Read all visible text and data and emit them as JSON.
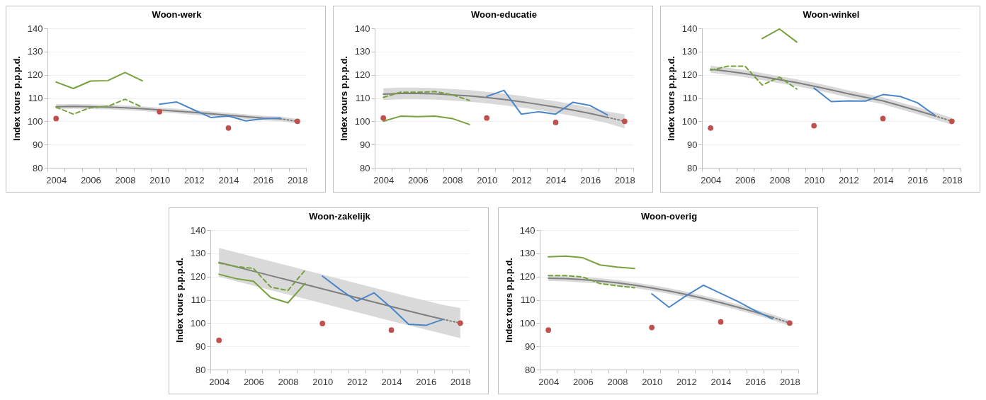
{
  "chart_data": [
    {
      "type": "line",
      "title": "Woon-werk",
      "ylabel": "Index tours p.p.p.d.",
      "categories": [
        "2004",
        null,
        "2006",
        null,
        "2008",
        null,
        "2010",
        null,
        "2012",
        null,
        "2014",
        null,
        "2016",
        null,
        "2018"
      ],
      "ylim": [
        80,
        140
      ],
      "yticks": [
        80,
        90,
        100,
        110,
        120,
        130,
        140
      ],
      "grid": "y",
      "series": [
        {
          "color": "#7f7f7f",
          "values": [
            106.3,
            106.4,
            106.3,
            106.1,
            105.8,
            105.4,
            104.9,
            104.4,
            103.8,
            103.2,
            102.6,
            102.0,
            101.4,
            101.1,
            null
          ],
          "lower": [
            105.3,
            105.4,
            105.3,
            105.1,
            104.8,
            104.4,
            103.9,
            103.4,
            102.8,
            102.2,
            101.6,
            101.0,
            100.4,
            100.1,
            99.0
          ],
          "upper": [
            107.3,
            107.4,
            107.3,
            107.1,
            106.8,
            106.4,
            105.9,
            105.4,
            104.8,
            104.2,
            103.6,
            103.0,
            102.4,
            102.1,
            101.0
          ]
        },
        {
          "type": "line",
          "color": "#7f7f7f",
          "line_style": "dotted",
          "values": [
            null,
            null,
            null,
            null,
            null,
            null,
            null,
            null,
            null,
            null,
            null,
            null,
            null,
            101.1,
            100
          ]
        },
        {
          "type": "line",
          "color": "#77a13c",
          "line_style": "solid",
          "values": [
            116.9,
            114.1,
            117.3,
            117.5,
            121.0,
            117.4,
            null,
            null,
            null,
            null,
            null,
            null,
            null,
            null,
            null
          ]
        },
        {
          "type": "line",
          "color": "#77a13c",
          "line_style": "dashed",
          "values": [
            106.1,
            103.1,
            105.9,
            106.4,
            109.5,
            106.1,
            null,
            null,
            null,
            null,
            null,
            null,
            null,
            null,
            null
          ]
        },
        {
          "type": "line",
          "color": "#4a86c8",
          "line_style": "solid",
          "values": [
            null,
            null,
            null,
            null,
            null,
            null,
            107.3,
            108.3,
            104.9,
            101.6,
            102.3,
            100.2,
            101.1,
            101.4,
            null
          ]
        },
        {
          "type": "scatter",
          "color": "#c0504d",
          "marker": "circle",
          "values": [
            101.2,
            null,
            null,
            null,
            null,
            null,
            104.1,
            null,
            null,
            null,
            97.1,
            null,
            null,
            null,
            100
          ]
        }
      ]
    },
    {
      "type": "line",
      "title": "Woon-educatie",
      "ylabel": "Index tours p.p.p.d.",
      "categories": [
        "2004",
        null,
        "2006",
        null,
        "2008",
        null,
        "2010",
        null,
        "2012",
        null,
        "2014",
        null,
        "2016",
        null,
        "2018"
      ],
      "ylim": [
        80,
        140
      ],
      "yticks": [
        80,
        90,
        100,
        110,
        120,
        130,
        140
      ],
      "grid": "y",
      "series": [
        {
          "color": "#7f7f7f",
          "values": [
            111.7,
            112.0,
            112.0,
            111.8,
            111.4,
            110.9,
            110.2,
            109.4,
            108.4,
            107.3,
            106.1,
            104.8,
            103.4,
            101.7,
            null
          ],
          "lower": [
            109.2,
            109.5,
            109.5,
            109.3,
            108.9,
            108.4,
            107.7,
            106.9,
            105.9,
            104.8,
            103.6,
            102.3,
            100.9,
            99.2,
            97.0
          ],
          "upper": [
            114.2,
            114.5,
            114.5,
            114.3,
            113.9,
            113.4,
            112.7,
            111.9,
            110.9,
            109.8,
            108.6,
            107.3,
            105.9,
            104.2,
            103.0
          ]
        },
        {
          "type": "line",
          "color": "#7f7f7f",
          "line_style": "dotted",
          "values": [
            null,
            null,
            null,
            null,
            null,
            null,
            null,
            null,
            null,
            null,
            null,
            null,
            null,
            101.7,
            100
          ]
        },
        {
          "type": "line",
          "color": "#77a13c",
          "line_style": "solid",
          "values": [
            100.0,
            102.2,
            102.0,
            102.2,
            101.2,
            98.6,
            null,
            null,
            null,
            null,
            null,
            null,
            null,
            null,
            null
          ]
        },
        {
          "type": "line",
          "color": "#77a13c",
          "line_style": "dashed",
          "values": [
            110.3,
            112.5,
            112.5,
            112.8,
            111.4,
            109.0,
            null,
            null,
            null,
            null,
            null,
            null,
            null,
            null,
            null
          ]
        },
        {
          "type": "line",
          "color": "#4a86c8",
          "line_style": "solid",
          "values": [
            null,
            null,
            null,
            null,
            null,
            null,
            110.7,
            113.3,
            103.1,
            104.1,
            103.1,
            108.2,
            106.8,
            102.7,
            null
          ]
        },
        {
          "type": "scatter",
          "color": "#c0504d",
          "marker": "circle",
          "values": [
            101.4,
            null,
            null,
            null,
            null,
            null,
            101.4,
            null,
            null,
            null,
            99.5,
            null,
            null,
            null,
            100
          ]
        }
      ]
    },
    {
      "type": "line",
      "title": "Woon-winkel",
      "ylabel": "Index tours p.p.p.d.",
      "categories": [
        "2004",
        null,
        "2006",
        null,
        "2008",
        null,
        "2010",
        null,
        "2012",
        null,
        "2014",
        null,
        "2016",
        null,
        "2018"
      ],
      "ylim": [
        80,
        140
      ],
      "yticks": [
        80,
        90,
        100,
        110,
        120,
        130,
        140
      ],
      "grid": "y",
      "series": [
        {
          "color": "#7f7f7f",
          "values": [
            122.4,
            121.5,
            120.5,
            119.2,
            117.9,
            116.6,
            115.1,
            113.5,
            111.8,
            110.3,
            108.8,
            106.7,
            104.6,
            102.4,
            null
          ],
          "lower": [
            120.9,
            120.0,
            119.0,
            117.7,
            116.4,
            115.1,
            113.6,
            112.0,
            110.3,
            108.8,
            107.3,
            105.2,
            103.1,
            100.9,
            98.5
          ],
          "upper": [
            123.9,
            123.0,
            122.0,
            120.7,
            119.4,
            118.1,
            116.6,
            115.0,
            113.3,
            111.8,
            110.3,
            108.2,
            106.1,
            103.9,
            101.5
          ]
        },
        {
          "type": "line",
          "color": "#7f7f7f",
          "line_style": "dotted",
          "values": [
            null,
            null,
            null,
            null,
            null,
            null,
            null,
            null,
            null,
            null,
            null,
            null,
            null,
            102.4,
            100
          ]
        },
        {
          "type": "line",
          "color": "#77a13c",
          "line_style": "solid",
          "values": [
            null,
            null,
            null,
            135.6,
            139.7,
            134.1,
            null,
            null,
            null,
            null,
            null,
            null,
            null,
            null,
            null
          ]
        },
        {
          "type": "line",
          "color": "#77a13c",
          "line_style": "dashed",
          "values": [
            122.0,
            123.7,
            123.7,
            115.6,
            119.0,
            113.9,
            null,
            null,
            null,
            null,
            null,
            null,
            null,
            null,
            null
          ]
        },
        {
          "type": "line",
          "color": "#4a86c8",
          "line_style": "solid",
          "values": [
            null,
            null,
            null,
            null,
            null,
            null,
            114.3,
            108.5,
            108.8,
            108.7,
            111.5,
            110.7,
            108.0,
            102.7,
            null
          ]
        },
        {
          "type": "scatter",
          "color": "#c0504d",
          "marker": "circle",
          "values": [
            97.1,
            null,
            null,
            null,
            null,
            null,
            98.1,
            null,
            null,
            null,
            101.2,
            null,
            null,
            null,
            100
          ]
        }
      ]
    },
    {
      "type": "line",
      "title": "Woon-zakelijk",
      "ylabel": "Index tours p.p.p.d.",
      "categories": [
        "2004",
        null,
        "2006",
        null,
        "2008",
        null,
        "2010",
        null,
        "2012",
        null,
        "2014",
        null,
        "2016",
        null,
        "2018"
      ],
      "ylim": [
        80,
        140
      ],
      "yticks": [
        80,
        90,
        100,
        110,
        120,
        130,
        140
      ],
      "grid": "y",
      "series": [
        {
          "color": "#7f7f7f",
          "values": [
            126.1,
            124.2,
            122.3,
            120.4,
            118.5,
            116.6,
            114.7,
            112.8,
            110.9,
            109.0,
            107.1,
            105.2,
            103.4,
            101.6,
            null
          ],
          "lower": [
            119.9,
            118.0,
            116.1,
            114.2,
            112.3,
            110.4,
            108.5,
            106.6,
            104.7,
            102.8,
            100.9,
            99.0,
            97.2,
            95.4,
            93.5
          ],
          "upper": [
            132.3,
            130.4,
            128.5,
            126.6,
            124.7,
            122.8,
            120.9,
            119.0,
            117.1,
            115.2,
            113.3,
            111.4,
            109.6,
            107.8,
            106.5
          ]
        },
        {
          "type": "line",
          "color": "#7f7f7f",
          "line_style": "dotted",
          "values": [
            null,
            null,
            null,
            null,
            null,
            null,
            null,
            null,
            null,
            null,
            null,
            null,
            null,
            101.6,
            100
          ]
        },
        {
          "type": "line",
          "color": "#77a13c",
          "line_style": "solid",
          "values": [
            121.0,
            119.1,
            118.0,
            111.0,
            108.7,
            117.1,
            null,
            null,
            null,
            null,
            null,
            null,
            null,
            null,
            null
          ]
        },
        {
          "type": "line",
          "color": "#77a13c",
          "line_style": "dashed",
          "values": [
            125.8,
            124.3,
            123.5,
            115.5,
            114.0,
            122.8,
            null,
            null,
            null,
            null,
            null,
            null,
            null,
            null,
            null
          ]
        },
        {
          "type": "line",
          "color": "#4a86c8",
          "line_style": "solid",
          "values": [
            null,
            null,
            null,
            null,
            null,
            null,
            120.2,
            114.6,
            109.4,
            113.0,
            106.6,
            99.5,
            99.0,
            101.6,
            null
          ]
        },
        {
          "type": "scatter",
          "color": "#c0504d",
          "marker": "circle",
          "values": [
            92.6,
            null,
            null,
            null,
            null,
            null,
            99.8,
            null,
            null,
            null,
            97.0,
            null,
            null,
            null,
            100
          ]
        }
      ]
    },
    {
      "type": "line",
      "title": "Woon-overig",
      "ylabel": "Index tours p.p.p.d.",
      "categories": [
        "2004",
        null,
        "2006",
        null,
        "2008",
        null,
        "2010",
        null,
        "2012",
        null,
        "2014",
        null,
        "2016",
        null,
        "2018"
      ],
      "ylim": [
        80,
        140
      ],
      "yticks": [
        80,
        90,
        100,
        110,
        120,
        130,
        140
      ],
      "grid": "y",
      "series": [
        {
          "color": "#7f7f7f",
          "values": [
            119.3,
            119.1,
            118.7,
            118.1,
            117.3,
            116.3,
            115.1,
            113.8,
            112.3,
            110.6,
            108.8,
            106.8,
            104.7,
            102.5,
            null
          ],
          "lower": [
            118.1,
            117.9,
            117.5,
            116.9,
            116.1,
            115.1,
            113.9,
            112.6,
            111.1,
            109.4,
            107.6,
            105.6,
            103.5,
            101.3,
            98.8
          ],
          "upper": [
            120.5,
            120.3,
            119.9,
            119.3,
            118.5,
            117.5,
            116.3,
            115.0,
            113.5,
            111.8,
            110.0,
            108.0,
            105.9,
            103.7,
            101.2
          ]
        },
        {
          "type": "line",
          "color": "#7f7f7f",
          "line_style": "dotted",
          "values": [
            null,
            null,
            null,
            null,
            null,
            null,
            null,
            null,
            null,
            null,
            null,
            null,
            null,
            102.5,
            100
          ]
        },
        {
          "type": "line",
          "color": "#77a13c",
          "line_style": "solid",
          "values": [
            128.5,
            128.8,
            128.1,
            125.0,
            124.1,
            123.5,
            null,
            null,
            null,
            null,
            null,
            null,
            null,
            null,
            null
          ]
        },
        {
          "type": "line",
          "color": "#77a13c",
          "line_style": "dashed",
          "values": [
            120.4,
            120.4,
            119.8,
            117.0,
            116.0,
            115.2,
            null,
            null,
            null,
            null,
            null,
            null,
            null,
            null,
            null
          ]
        },
        {
          "type": "line",
          "color": "#4a86c8",
          "line_style": "solid",
          "values": [
            null,
            null,
            null,
            null,
            null,
            null,
            112.6,
            106.8,
            111.8,
            116.3,
            112.8,
            109.3,
            105.3,
            101.8,
            null
          ]
        },
        {
          "type": "scatter",
          "color": "#c0504d",
          "marker": "circle",
          "values": [
            97.0,
            null,
            null,
            null,
            null,
            null,
            98.1,
            null,
            null,
            null,
            100.5,
            null,
            null,
            null,
            100
          ]
        }
      ]
    }
  ]
}
